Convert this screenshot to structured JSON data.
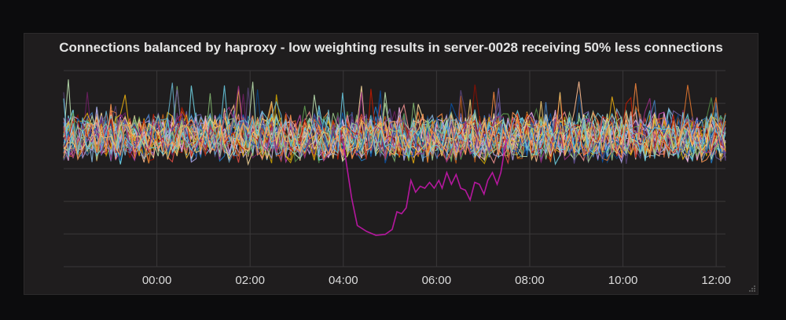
{
  "panel": {
    "title": "Connections balanced by haproxy - low weighting results in server-0028 receiving 50% less connections"
  },
  "chart_data": {
    "type": "line",
    "title": "Connections balanced by haproxy - low weighting results in server-0028 receiving 50% less connections",
    "xlabel": "",
    "ylabel": "",
    "x_tick_labels": [
      "00:00",
      "02:00",
      "04:00",
      "06:00",
      "08:00",
      "10:00",
      "12:00"
    ],
    "x_range_hours": [
      -2.0,
      12.2
    ],
    "x_tick_hours": [
      0,
      2,
      4,
      6,
      8,
      10,
      12
    ],
    "y_range": [
      0,
      100
    ],
    "y_gridlines": [
      0,
      16.7,
      33.3,
      50,
      66.7,
      83.3,
      100
    ],
    "y_tick_labels_visible": false,
    "grid": true,
    "legend": "none",
    "background": "#1f1d1e",
    "grid_color": "#3a3839",
    "tick_label_color": "#dcdcdc",
    "series_colors": [
      "#7eb26d",
      "#eab839",
      "#6ed0e0",
      "#ef843c",
      "#e24d42",
      "#1f78c1",
      "#ba43a9",
      "#705da0",
      "#508642",
      "#cca300",
      "#447ebc",
      "#c15c17",
      "#890f02",
      "#0a437c",
      "#6d1f62",
      "#584477",
      "#b7dbab",
      "#f4d598",
      "#70dbed",
      "#f9ba8f",
      "#f29191",
      "#82b5d8",
      "#e5a8e2",
      "#aea2e0",
      "#629e51",
      "#e5ac0e",
      "#64b0c8",
      "#e0752d",
      "#bf1b00",
      "#0a50a1",
      "#962d82",
      "#614d93",
      "#9ac48a",
      "#f2c96d",
      "#65c5db",
      "#f9934e"
    ],
    "baseline_series": {
      "count": 36,
      "mean": 66,
      "spread": 14,
      "samples": 140
    },
    "highlight_series": {
      "name": "server-0028",
      "color": "#b5179e",
      "points": [
        [
          4.0,
          63
        ],
        [
          4.18,
          35
        ],
        [
          4.3,
          21
        ],
        [
          4.5,
          18
        ],
        [
          4.7,
          16
        ],
        [
          4.9,
          16.5
        ],
        [
          5.05,
          19
        ],
        [
          5.15,
          28
        ],
        [
          5.25,
          27
        ],
        [
          5.35,
          30
        ],
        [
          5.45,
          44
        ],
        [
          5.55,
          38
        ],
        [
          5.65,
          41
        ],
        [
          5.75,
          40
        ],
        [
          5.85,
          43
        ],
        [
          5.95,
          40
        ],
        [
          6.05,
          44
        ],
        [
          6.12,
          40
        ],
        [
          6.22,
          48
        ],
        [
          6.32,
          42
        ],
        [
          6.42,
          47
        ],
        [
          6.52,
          40
        ],
        [
          6.62,
          39
        ],
        [
          6.72,
          34
        ],
        [
          6.82,
          43
        ],
        [
          6.92,
          42
        ],
        [
          7.02,
          37
        ],
        [
          7.1,
          44
        ],
        [
          7.2,
          48
        ],
        [
          7.3,
          42
        ],
        [
          7.38,
          48
        ],
        [
          7.45,
          58
        ],
        [
          7.5,
          65
        ]
      ]
    }
  }
}
